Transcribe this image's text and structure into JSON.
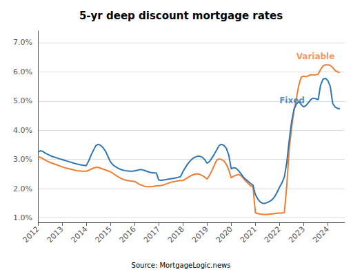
{
  "chart_data": {
    "type": "line",
    "title": "5-yr deep discount mortgage rates",
    "source": "Source: MortgageLogic.news",
    "xlim": [
      2012,
      2024.7
    ],
    "xticks": [
      2012,
      2013,
      2014,
      2015,
      2016,
      2017,
      2018,
      2019,
      2020,
      2021,
      2022,
      2023,
      2024
    ],
    "ylim": [
      0.85,
      7.4
    ],
    "yticks": [
      {
        "value": 1.0,
        "label": "1.0%"
      },
      {
        "value": 2.0,
        "label": "2.0%"
      },
      {
        "value": 3.0,
        "label": "3.0%"
      },
      {
        "value": 4.0,
        "label": "4.0%"
      },
      {
        "value": 5.0,
        "label": "5.0%"
      },
      {
        "value": 6.0,
        "label": "6.0%"
      },
      {
        "value": 7.0,
        "label": "7.0%"
      }
    ],
    "grid": true,
    "annotations": [
      {
        "text": "Fixed",
        "x": 2021.85,
        "y": 4.75,
        "color": "#2e75b6"
      },
      {
        "text": "Variable",
        "x": 2022.55,
        "y": 6.28,
        "color": "#ed7d31"
      }
    ],
    "x": [
      2012.0,
      2012.1,
      2012.2,
      2012.3,
      2012.4,
      2012.5,
      2012.6,
      2012.7,
      2012.8,
      2012.9,
      2013.0,
      2013.1,
      2013.2,
      2013.3,
      2013.4,
      2013.5,
      2013.6,
      2013.7,
      2013.8,
      2013.9,
      2014.0,
      2014.1,
      2014.2,
      2014.3,
      2014.4,
      2014.5,
      2014.6,
      2014.7,
      2014.8,
      2014.9,
      2015.0,
      2015.1,
      2015.2,
      2015.3,
      2015.4,
      2015.5,
      2015.6,
      2015.7,
      2015.8,
      2015.9,
      2016.0,
      2016.1,
      2016.2,
      2016.3,
      2016.4,
      2016.5,
      2016.6,
      2016.7,
      2016.8,
      2016.9,
      2017.0,
      2017.1,
      2017.2,
      2017.3,
      2017.4,
      2017.5,
      2017.6,
      2017.7,
      2017.8,
      2017.9,
      2018.0,
      2018.1,
      2018.2,
      2018.3,
      2018.4,
      2018.5,
      2018.6,
      2018.7,
      2018.8,
      2018.9,
      2019.0,
      2019.1,
      2019.2,
      2019.3,
      2019.4,
      2019.5,
      2019.6,
      2019.7,
      2019.8,
      2019.9,
      2020.0,
      2020.1,
      2020.2,
      2020.3,
      2020.4,
      2020.5,
      2020.6,
      2020.7,
      2020.8,
      2020.9,
      2021.0,
      2021.1,
      2021.2,
      2021.3,
      2021.4,
      2021.5,
      2021.6,
      2021.7,
      2021.8,
      2021.9,
      2022.0,
      2022.1,
      2022.2,
      2022.3,
      2022.4,
      2022.5,
      2022.6,
      2022.7,
      2022.8,
      2022.9,
      2023.0,
      2023.1,
      2023.2,
      2023.3,
      2023.4,
      2023.5,
      2023.6,
      2023.7,
      2023.8,
      2023.9,
      2024.0,
      2024.1,
      2024.2,
      2024.3,
      2024.4,
      2024.5
    ],
    "series": [
      {
        "name": "Variable",
        "color": "#ed7d31",
        "values": [
          3.1,
          3.07,
          3.03,
          2.98,
          2.94,
          2.9,
          2.87,
          2.84,
          2.81,
          2.78,
          2.75,
          2.72,
          2.7,
          2.68,
          2.66,
          2.64,
          2.62,
          2.61,
          2.6,
          2.6,
          2.6,
          2.63,
          2.67,
          2.71,
          2.73,
          2.73,
          2.7,
          2.67,
          2.64,
          2.61,
          2.58,
          2.53,
          2.47,
          2.42,
          2.37,
          2.33,
          2.3,
          2.28,
          2.27,
          2.26,
          2.25,
          2.2,
          2.15,
          2.12,
          2.09,
          2.07,
          2.07,
          2.07,
          2.08,
          2.1,
          2.1,
          2.11,
          2.13,
          2.16,
          2.19,
          2.22,
          2.24,
          2.25,
          2.27,
          2.28,
          2.28,
          2.33,
          2.38,
          2.43,
          2.47,
          2.5,
          2.51,
          2.49,
          2.45,
          2.4,
          2.33,
          2.46,
          2.62,
          2.8,
          2.98,
          3.02,
          3.0,
          2.95,
          2.83,
          2.65,
          2.37,
          2.43,
          2.46,
          2.49,
          2.45,
          2.36,
          2.26,
          2.18,
          2.1,
          2.07,
          1.18,
          1.15,
          1.13,
          1.12,
          1.12,
          1.12,
          1.13,
          1.14,
          1.15,
          1.16,
          1.17,
          1.17,
          1.18,
          2.1,
          3.35,
          4.1,
          4.68,
          5.1,
          5.55,
          5.82,
          5.85,
          5.83,
          5.87,
          5.9,
          5.9,
          5.9,
          5.92,
          6.08,
          6.2,
          6.24,
          6.24,
          6.22,
          6.15,
          6.05,
          6.0,
          5.98
        ]
      },
      {
        "name": "Fixed",
        "color": "#2e75b6",
        "values": [
          3.25,
          3.3,
          3.28,
          3.22,
          3.18,
          3.14,
          3.1,
          3.08,
          3.05,
          3.02,
          3.0,
          2.97,
          2.95,
          2.92,
          2.9,
          2.87,
          2.85,
          2.83,
          2.81,
          2.8,
          2.79,
          2.95,
          3.15,
          3.32,
          3.48,
          3.52,
          3.48,
          3.4,
          3.28,
          3.1,
          2.92,
          2.82,
          2.76,
          2.71,
          2.67,
          2.64,
          2.62,
          2.61,
          2.6,
          2.6,
          2.61,
          2.63,
          2.65,
          2.65,
          2.63,
          2.6,
          2.57,
          2.55,
          2.54,
          2.54,
          2.3,
          2.29,
          2.3,
          2.31,
          2.33,
          2.34,
          2.35,
          2.37,
          2.39,
          2.41,
          2.58,
          2.72,
          2.85,
          2.95,
          3.03,
          3.08,
          3.11,
          3.11,
          3.08,
          3.0,
          2.87,
          2.93,
          3.05,
          3.18,
          3.33,
          3.48,
          3.52,
          3.48,
          3.38,
          3.15,
          2.68,
          2.72,
          2.7,
          2.62,
          2.52,
          2.4,
          2.32,
          2.25,
          2.18,
          2.12,
          1.8,
          1.65,
          1.55,
          1.5,
          1.5,
          1.53,
          1.57,
          1.63,
          1.73,
          1.88,
          2.05,
          2.2,
          2.4,
          2.9,
          3.65,
          4.3,
          4.72,
          4.9,
          4.98,
          4.88,
          4.8,
          4.85,
          4.95,
          5.06,
          5.1,
          5.08,
          5.05,
          5.55,
          5.75,
          5.78,
          5.7,
          5.5,
          4.92,
          4.8,
          4.75,
          4.74
        ]
      }
    ]
  }
}
